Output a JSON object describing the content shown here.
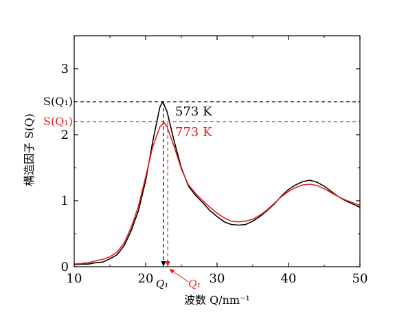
{
  "chart_data": {
    "type": "line",
    "xlabel": "波数 Q/nm⁻¹",
    "ylabel": "構造因子 S(Q)",
    "xlim": [
      10,
      50
    ],
    "ylim": [
      0,
      3.5
    ],
    "x_ticks": [
      "10",
      "20",
      "30",
      "40",
      "50"
    ],
    "y_ticks": [
      "0",
      "1",
      "2",
      "3"
    ],
    "grid": false,
    "series": [
      {
        "name": "573 K",
        "color": "#000000",
        "points": [
          [
            10,
            0.03
          ],
          [
            11,
            0.04
          ],
          [
            12,
            0.04
          ],
          [
            13,
            0.06
          ],
          [
            14,
            0.07
          ],
          [
            15,
            0.12
          ],
          [
            16,
            0.18
          ],
          [
            17,
            0.32
          ],
          [
            18,
            0.55
          ],
          [
            19,
            0.85
          ],
          [
            20,
            1.3
          ],
          [
            21,
            1.9
          ],
          [
            22,
            2.42
          ],
          [
            22.4,
            2.5
          ],
          [
            23,
            2.35
          ],
          [
            24,
            1.9
          ],
          [
            25,
            1.5
          ],
          [
            26,
            1.22
          ],
          [
            27,
            1.08
          ],
          [
            28,
            0.97
          ],
          [
            29,
            0.85
          ],
          [
            30,
            0.76
          ],
          [
            31,
            0.68
          ],
          [
            32,
            0.64
          ],
          [
            33,
            0.63
          ],
          [
            34,
            0.64
          ],
          [
            35,
            0.69
          ],
          [
            36,
            0.76
          ],
          [
            37,
            0.85
          ],
          [
            38,
            0.95
          ],
          [
            39,
            1.07
          ],
          [
            40,
            1.17
          ],
          [
            41,
            1.24
          ],
          [
            42,
            1.29
          ],
          [
            43,
            1.31
          ],
          [
            44,
            1.28
          ],
          [
            45,
            1.22
          ],
          [
            46,
            1.14
          ],
          [
            47,
            1.06
          ],
          [
            48,
            1.0
          ],
          [
            49,
            0.95
          ],
          [
            50,
            0.9
          ]
        ]
      },
      {
        "name": "773 K",
        "color": "#e2201c",
        "points": [
          [
            10,
            0.04
          ],
          [
            11,
            0.05
          ],
          [
            12,
            0.06
          ],
          [
            13,
            0.09
          ],
          [
            14,
            0.11
          ],
          [
            15,
            0.15
          ],
          [
            16,
            0.22
          ],
          [
            17,
            0.36
          ],
          [
            18,
            0.6
          ],
          [
            19,
            0.92
          ],
          [
            20,
            1.36
          ],
          [
            21,
            1.82
          ],
          [
            22,
            2.12
          ],
          [
            22.6,
            2.18
          ],
          [
            23,
            2.12
          ],
          [
            24,
            1.82
          ],
          [
            25,
            1.48
          ],
          [
            26,
            1.24
          ],
          [
            27,
            1.11
          ],
          [
            28,
            1.0
          ],
          [
            29,
            0.9
          ],
          [
            30,
            0.81
          ],
          [
            31,
            0.74
          ],
          [
            32,
            0.69
          ],
          [
            33,
            0.68
          ],
          [
            34,
            0.69
          ],
          [
            35,
            0.72
          ],
          [
            36,
            0.78
          ],
          [
            37,
            0.86
          ],
          [
            38,
            0.96
          ],
          [
            39,
            1.06
          ],
          [
            40,
            1.14
          ],
          [
            41,
            1.2
          ],
          [
            42,
            1.24
          ],
          [
            43,
            1.25
          ],
          [
            44,
            1.23
          ],
          [
            45,
            1.18
          ],
          [
            46,
            1.12
          ],
          [
            47,
            1.06
          ],
          [
            48,
            1.01
          ],
          [
            49,
            0.97
          ],
          [
            50,
            0.93
          ]
        ]
      }
    ],
    "reference_lines": [
      {
        "axis": "y",
        "value": 2.5,
        "label": "S(Q₁)",
        "color": "#000000",
        "style": "dashed"
      },
      {
        "axis": "y",
        "value": 2.2,
        "label": "S(Q₁)",
        "color": "#e2201c",
        "style": "dashed"
      },
      {
        "axis": "x",
        "value": 22.5,
        "label": "Q₁",
        "color": "#000000",
        "style": "dashed"
      },
      {
        "axis": "x",
        "value": 23.1,
        "label": "Q₁",
        "color": "#e2201c",
        "style": "dashed"
      }
    ],
    "annotations": [
      {
        "text": "573 K",
        "color": "#000000"
      },
      {
        "text": "773 K",
        "color": "#e2201c"
      }
    ]
  }
}
